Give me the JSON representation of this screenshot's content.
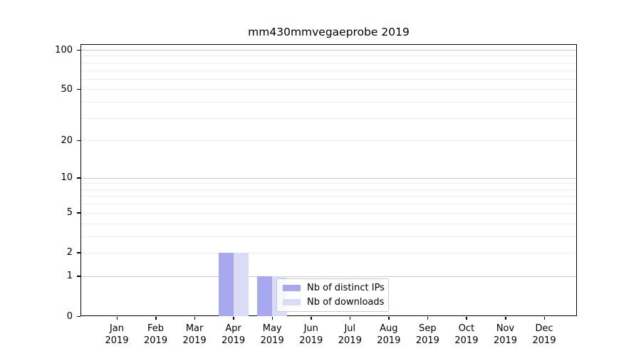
{
  "chart_data": {
    "type": "bar",
    "title": "mm430mmvegaeprobe 2019",
    "categories": [
      "Jan",
      "Feb",
      "Mar",
      "Apr",
      "May",
      "Jun",
      "Jul",
      "Aug",
      "Sep",
      "Oct",
      "Nov",
      "Dec"
    ],
    "category_year": "2019",
    "series": [
      {
        "name": "Nb of distinct IPs",
        "color": "#a8a8f0",
        "values": [
          0,
          0,
          0,
          2,
          1,
          0,
          0,
          0,
          0,
          0,
          0,
          0
        ]
      },
      {
        "name": "Nb of downloads",
        "color": "#dbdbf8",
        "values": [
          0,
          0,
          0,
          2,
          1,
          0,
          0,
          0,
          0,
          0,
          0,
          0
        ]
      }
    ],
    "xlabel": "",
    "ylabel": "",
    "y_axis": {
      "scale": "log1p",
      "range": [
        0,
        100
      ],
      "top_value": 110.5,
      "tick_values": [
        0,
        1,
        2,
        5,
        10,
        20,
        50,
        100
      ],
      "major_gridlines": [
        1,
        10,
        100
      ],
      "minor_gridlines": [
        2,
        3,
        4,
        5,
        6,
        7,
        8,
        9,
        20,
        30,
        40,
        50,
        60,
        70,
        80,
        90
      ]
    },
    "grid": true,
    "legend": {
      "entries": [
        "Nb of distinct IPs",
        "Nb of downloads"
      ],
      "position": "inside-bottom-center"
    },
    "colors": {
      "major_grid": "#c9c9c9",
      "minor_grid": "#ededed",
      "spine": "#000000",
      "text": "#000000",
      "legend_border": "#cbcbcb",
      "legend_bg": "rgba(255,255,255,0.8)"
    }
  }
}
